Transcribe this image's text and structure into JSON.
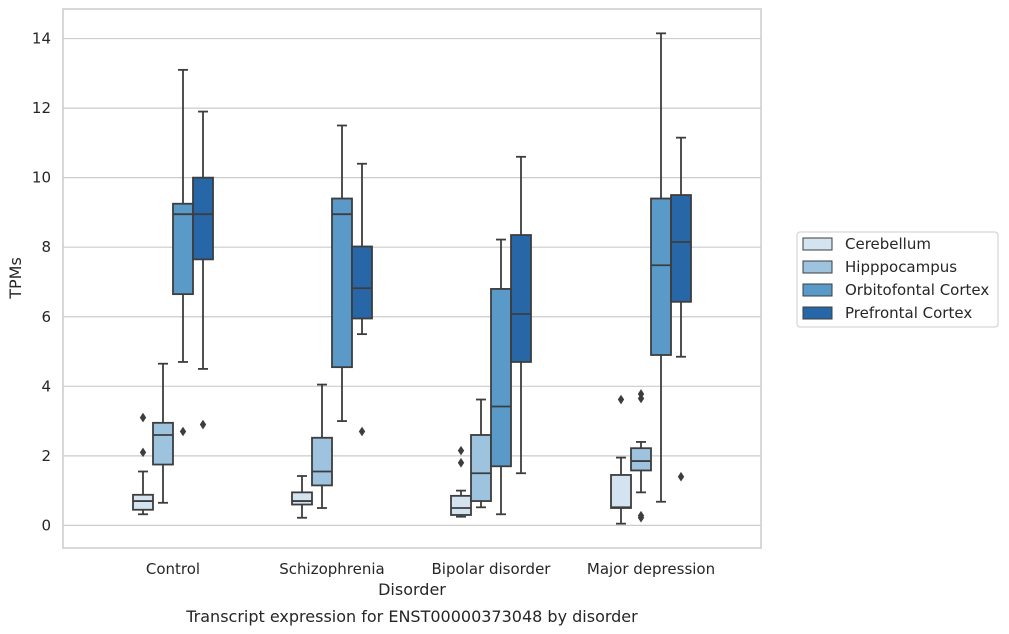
{
  "caption": "Transcript expression for ENST00000373048 by disorder",
  "chart_data": {
    "type": "box",
    "xlabel": "Disorder",
    "ylabel": "TPMs",
    "ylim": [
      -0.65,
      14.85
    ],
    "yticks": [
      0,
      2,
      4,
      6,
      8,
      10,
      12,
      14
    ],
    "grid": "horizontal",
    "legend_position": "right",
    "categories": [
      "Control",
      "Schizophrenia",
      "Bipolar disorder",
      "Major depression"
    ],
    "series": [
      {
        "name": "Cerebellum",
        "color": "#d3e3f0",
        "boxes": [
          {
            "min": 0.32,
            "q1": 0.45,
            "median": 0.7,
            "q3": 0.88,
            "max": 1.55,
            "outliers": [
              2.1,
              3.1
            ]
          },
          {
            "min": 0.22,
            "q1": 0.6,
            "median": 0.7,
            "q3": 0.95,
            "max": 1.42,
            "outliers": []
          },
          {
            "min": 0.25,
            "q1": 0.3,
            "median": 0.5,
            "q3": 0.85,
            "max": 1.0,
            "outliers": [
              1.8,
              2.15
            ]
          },
          {
            "min": 0.05,
            "q1": 0.5,
            "median": 0.52,
            "q3": 1.45,
            "max": 1.95,
            "outliers": [
              3.62
            ]
          }
        ]
      },
      {
        "name": "Hipppocampus",
        "color": "#9dc3de",
        "boxes": [
          {
            "min": 0.65,
            "q1": 1.75,
            "median": 2.6,
            "q3": 2.95,
            "max": 4.65,
            "outliers": []
          },
          {
            "min": 0.5,
            "q1": 1.15,
            "median": 1.55,
            "q3": 2.52,
            "max": 4.05,
            "outliers": []
          },
          {
            "min": 0.52,
            "q1": 0.7,
            "median": 1.5,
            "q3": 2.6,
            "max": 3.62,
            "outliers": []
          },
          {
            "min": 0.95,
            "q1": 1.58,
            "median": 1.85,
            "q3": 2.22,
            "max": 2.4,
            "outliers": [
              0.22,
              0.28,
              3.65,
              3.78
            ]
          }
        ]
      },
      {
        "name": "Orbitofontal Cortex",
        "color": "#5a9ac8",
        "boxes": [
          {
            "min": 4.7,
            "q1": 6.65,
            "median": 8.95,
            "q3": 9.25,
            "max": 13.1,
            "outliers": [
              2.7
            ]
          },
          {
            "min": 3.0,
            "q1": 4.55,
            "median": 8.95,
            "q3": 9.4,
            "max": 11.5,
            "outliers": []
          },
          {
            "min": 0.32,
            "q1": 1.7,
            "median": 3.42,
            "q3": 6.8,
            "max": 8.22,
            "outliers": []
          },
          {
            "min": 0.68,
            "q1": 4.9,
            "median": 7.48,
            "q3": 9.4,
            "max": 14.15,
            "outliers": []
          }
        ]
      },
      {
        "name": "Prefrontal Cortex",
        "color": "#2767a8",
        "boxes": [
          {
            "min": 4.5,
            "q1": 7.65,
            "median": 8.95,
            "q3": 10.0,
            "max": 11.9,
            "outliers": [
              2.9
            ]
          },
          {
            "min": 5.5,
            "q1": 5.95,
            "median": 6.82,
            "q3": 8.02,
            "max": 10.4,
            "outliers": [
              2.7
            ]
          },
          {
            "min": 1.5,
            "q1": 4.7,
            "median": 6.08,
            "q3": 8.35,
            "max": 10.6,
            "outliers": []
          },
          {
            "min": 4.85,
            "q1": 6.43,
            "median": 8.15,
            "q3": 9.5,
            "max": 11.15,
            "outliers": [
              1.4
            ]
          }
        ]
      }
    ]
  }
}
